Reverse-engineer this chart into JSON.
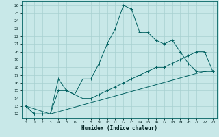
{
  "xlabel": "Humidex (Indice chaleur)",
  "background_color": "#c8e8e8",
  "grid_color": "#a8d0d0",
  "line_color": "#006060",
  "xlim": [
    -0.5,
    23.5
  ],
  "ylim": [
    11.5,
    26.5
  ],
  "xticks": [
    0,
    1,
    2,
    3,
    4,
    5,
    6,
    7,
    8,
    9,
    10,
    11,
    12,
    13,
    14,
    15,
    16,
    17,
    18,
    19,
    20,
    21,
    22,
    23
  ],
  "yticks": [
    12,
    13,
    14,
    15,
    16,
    17,
    18,
    19,
    20,
    21,
    22,
    23,
    24,
    25,
    26
  ],
  "line1_x": [
    0,
    1,
    2,
    3,
    4,
    5,
    6,
    7,
    8,
    9,
    10,
    11,
    12,
    13,
    14,
    15,
    16,
    17,
    18,
    19,
    20,
    21,
    22,
    23
  ],
  "line1_y": [
    13,
    12,
    12,
    12,
    16.5,
    15,
    14.5,
    16.5,
    16.5,
    18.5,
    21,
    23,
    26,
    25.5,
    22.5,
    22.5,
    21.5,
    21,
    21.5,
    20,
    18.5,
    17.5,
    17.5,
    17.5
  ],
  "line2_x": [
    0,
    1,
    2,
    3,
    4,
    5,
    6,
    7,
    8,
    9,
    10,
    11,
    12,
    13,
    14,
    15,
    16,
    17,
    18,
    19,
    20,
    21,
    22,
    23
  ],
  "line2_y": [
    13,
    12,
    12,
    12,
    15,
    15,
    14.5,
    14,
    14,
    14.5,
    15,
    15.5,
    16,
    16.5,
    17,
    17.5,
    18,
    18,
    18.5,
    19,
    19.5,
    20,
    20,
    17.5
  ],
  "line3_x": [
    0,
    3,
    22,
    23
  ],
  "line3_y": [
    13,
    12,
    17.5,
    17.5
  ]
}
